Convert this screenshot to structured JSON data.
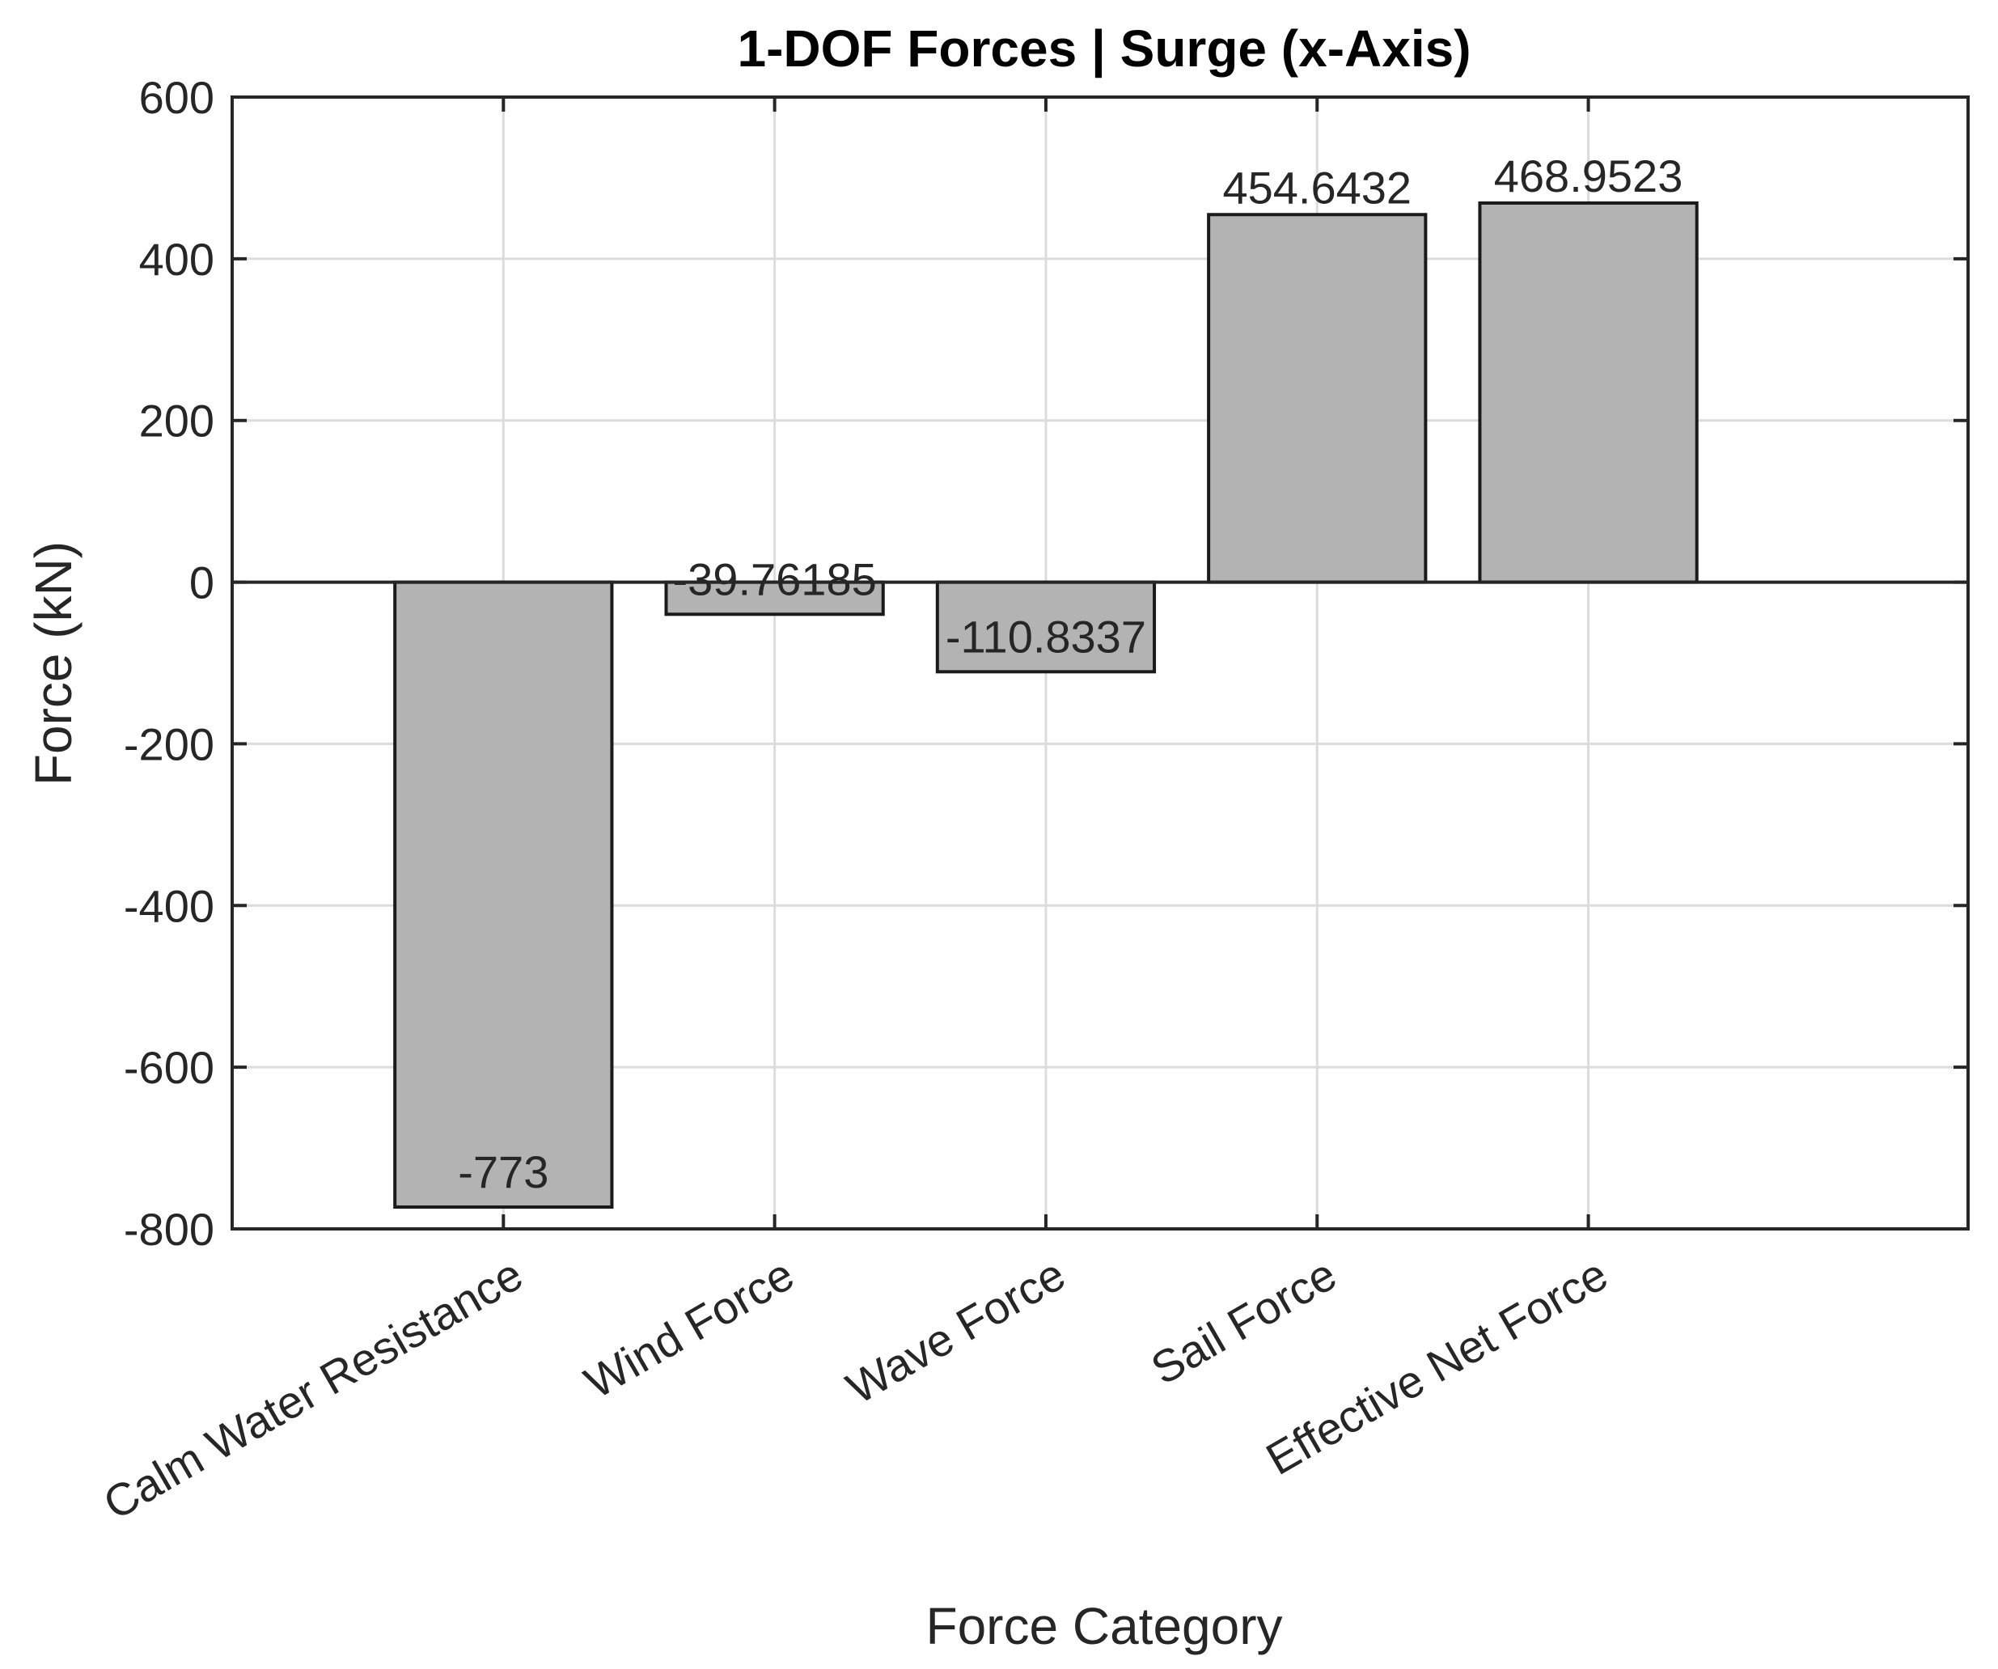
{
  "chart_data": {
    "type": "bar",
    "title": "1-DOF Forces | Surge (x-Axis)",
    "xlabel": "Force Category",
    "ylabel": "Force (kN)",
    "categories": [
      "Calm Water Resistance",
      "Wind Force",
      "Wave Force",
      "Sail Force",
      "Effective Net Force"
    ],
    "values": [
      -773,
      -39.76185,
      -110.8337,
      454.6432,
      468.9523
    ],
    "value_labels": [
      "-773",
      "-39.76185",
      "-110.8337",
      "454.6432",
      "468.9523"
    ],
    "ylim": [
      -800,
      600
    ],
    "yticks": [
      -800,
      -600,
      -400,
      -200,
      0,
      200,
      400,
      600
    ],
    "ytick_labels": [
      "-800",
      "-600",
      "-400",
      "-200",
      "0",
      "200",
      "400",
      "600"
    ],
    "xlim": [
      0,
      6.4
    ],
    "grid": true,
    "bar_color": "#b3b3b3",
    "bar_edge_color": "#1a1a1a"
  }
}
